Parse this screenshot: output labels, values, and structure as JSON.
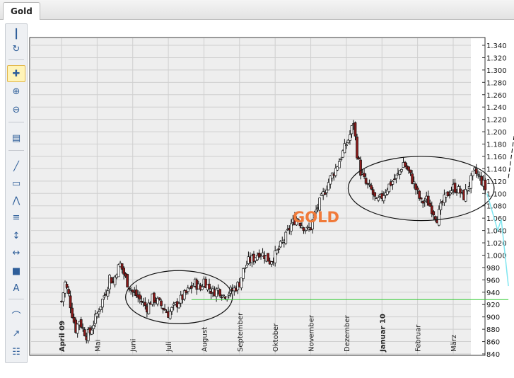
{
  "tab": {
    "label": "Gold"
  },
  "toolbar": {
    "tools": [
      "grip-icon",
      "refresh-icon",
      "crosshair-icon",
      "zoom-in-icon",
      "zoom-out-icon",
      "chart-type-icon",
      "trendline-icon",
      "ruler-icon",
      "pitchfork-icon",
      "fibonacci-icon",
      "vertical-line-icon",
      "horizontal-line-icon",
      "rectangle-icon",
      "text-icon",
      "arc-icon",
      "ray-icon",
      "grid-icon"
    ]
  },
  "chart_data": {
    "type": "candlestick",
    "title": "GOLD",
    "ylabel": "",
    "xlabel": "",
    "ylim": [
      840,
      1340
    ],
    "yticks": [
      "1.340",
      "1.320",
      "1.300",
      "1.280",
      "1.260",
      "1.240",
      "1.220",
      "1.200",
      "1.180",
      "1.160",
      "1.140",
      "1.120",
      "1.100",
      "1.080",
      "1.060",
      "1.040",
      "1.020",
      "1.000",
      "980",
      "960",
      "940",
      "920",
      "900",
      "880",
      "860",
      "840"
    ],
    "months": [
      {
        "label": "April 09",
        "index": 0,
        "bold": true
      },
      {
        "label": "Mai",
        "index": 1,
        "bold": false
      },
      {
        "label": "Juni",
        "index": 2,
        "bold": false
      },
      {
        "label": "Juli",
        "index": 3,
        "bold": false
      },
      {
        "label": "August",
        "index": 4,
        "bold": false
      },
      {
        "label": "September",
        "index": 5,
        "bold": false
      },
      {
        "label": "Oktober",
        "index": 6,
        "bold": false
      },
      {
        "label": "November",
        "index": 7,
        "bold": false
      },
      {
        "label": "Dezember",
        "index": 8,
        "bold": false
      },
      {
        "label": "Januar 10",
        "index": 9,
        "bold": true
      },
      {
        "label": "Februar",
        "index": 10,
        "bold": false
      },
      {
        "label": "März",
        "index": 11,
        "bold": false
      }
    ],
    "month_positions": [
      0,
      1,
      2,
      3,
      4,
      5,
      6,
      7,
      8,
      9,
      10,
      11
    ],
    "x_range": [
      -0.7,
      11.95
    ],
    "closes": [
      [
        0,
        925
      ],
      [
        0.1,
        955
      ],
      [
        0.2,
        935
      ],
      [
        0.3,
        905
      ],
      [
        0.4,
        880
      ],
      [
        0.5,
        895
      ],
      [
        0.6,
        880
      ],
      [
        0.7,
        870
      ],
      [
        0.8,
        875
      ],
      [
        0.9,
        890
      ],
      [
        1.0,
        905
      ],
      [
        1.1,
        920
      ],
      [
        1.2,
        935
      ],
      [
        1.3,
        950
      ],
      [
        1.35,
        965
      ],
      [
        1.45,
        955
      ],
      [
        1.55,
        975
      ],
      [
        1.65,
        985
      ],
      [
        1.75,
        970
      ],
      [
        1.85,
        955
      ],
      [
        2.0,
        940
      ],
      [
        2.1,
        935
      ],
      [
        2.25,
        925
      ],
      [
        2.4,
        915
      ],
      [
        2.55,
        930
      ],
      [
        2.7,
        925
      ],
      [
        2.85,
        915
      ],
      [
        3.0,
        905
      ],
      [
        3.15,
        915
      ],
      [
        3.3,
        925
      ],
      [
        3.45,
        935
      ],
      [
        3.6,
        945
      ],
      [
        3.75,
        955
      ],
      [
        3.9,
        945
      ],
      [
        4.0,
        960
      ],
      [
        4.1,
        950
      ],
      [
        4.25,
        940
      ],
      [
        4.4,
        945
      ],
      [
        4.55,
        935
      ],
      [
        4.7,
        940
      ],
      [
        4.85,
        945
      ],
      [
        5.0,
        955
      ],
      [
        5.1,
        975
      ],
      [
        5.25,
        990
      ],
      [
        5.4,
        995
      ],
      [
        5.55,
        1005
      ],
      [
        5.7,
        1000
      ],
      [
        5.85,
        990
      ],
      [
        6.0,
        1000
      ],
      [
        6.15,
        1015
      ],
      [
        6.3,
        1030
      ],
      [
        6.45,
        1050
      ],
      [
        6.6,
        1060
      ],
      [
        6.75,
        1050
      ],
      [
        6.9,
        1040
      ],
      [
        7.0,
        1045
      ],
      [
        7.1,
        1065
      ],
      [
        7.25,
        1085
      ],
      [
        7.4,
        1105
      ],
      [
        7.55,
        1125
      ],
      [
        7.7,
        1140
      ],
      [
        7.85,
        1160
      ],
      [
        8.0,
        1180
      ],
      [
        8.1,
        1195
      ],
      [
        8.2,
        1215
      ],
      [
        8.3,
        1165
      ],
      [
        8.4,
        1135
      ],
      [
        8.55,
        1115
      ],
      [
        8.7,
        1105
      ],
      [
        8.85,
        1085
      ],
      [
        9.0,
        1095
      ],
      [
        9.15,
        1110
      ],
      [
        9.3,
        1120
      ],
      [
        9.45,
        1130
      ],
      [
        9.6,
        1150
      ],
      [
        9.75,
        1135
      ],
      [
        9.9,
        1115
      ],
      [
        10.0,
        1100
      ],
      [
        10.1,
        1085
      ],
      [
        10.25,
        1090
      ],
      [
        10.4,
        1075
      ],
      [
        10.55,
        1060
      ],
      [
        10.7,
        1085
      ],
      [
        10.85,
        1100
      ],
      [
        11.0,
        1110
      ],
      [
        11.15,
        1105
      ],
      [
        11.3,
        1095
      ],
      [
        11.45,
        1115
      ],
      [
        11.6,
        1135
      ],
      [
        11.75,
        1125
      ],
      [
        11.85,
        1115
      ],
      [
        11.95,
        1100
      ]
    ],
    "annotations": [
      {
        "type": "ellipse",
        "cx": 3.3,
        "cy": 932,
        "rx": 1.5,
        "ry": 43
      },
      {
        "type": "ellipse",
        "cx": 10.1,
        "cy": 1108,
        "rx": 2.05,
        "ry": 52
      },
      {
        "type": "hline",
        "y": 928,
        "x0": 3.65,
        "x1": 12.55,
        "color": "#33cc33"
      },
      {
        "type": "path",
        "color": "#7fe6f0",
        "points": [
          [
            11.95,
            1100
          ],
          [
            12.25,
            1040
          ],
          [
            12.35,
            1058
          ],
          [
            12.55,
            950
          ]
        ]
      },
      {
        "type": "arrow",
        "color": "#000000",
        "points": [
          [
            12.55,
            1125
          ],
          [
            12.75,
            1210
          ],
          [
            12.95,
            1340
          ]
        ]
      }
    ],
    "legend": "none",
    "grid": true
  }
}
